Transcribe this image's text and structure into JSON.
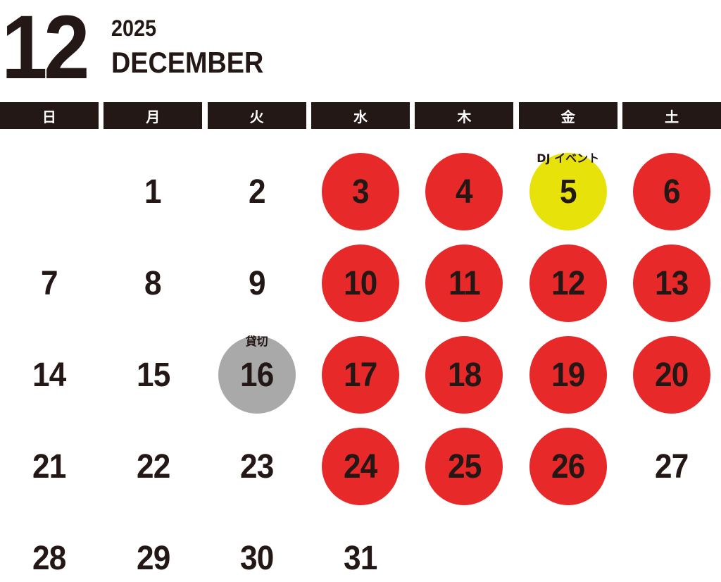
{
  "header": {
    "month_number": "12",
    "year": "2025",
    "month_name": "DECEMBER"
  },
  "weekdays": [
    "日",
    "月",
    "火",
    "水",
    "木",
    "金",
    "土"
  ],
  "colors": {
    "closed": "#e8292a",
    "event": "#e6e20a",
    "reserved": "#a9a9a9",
    "text": "#231815"
  },
  "first_weekday_index": 1,
  "days": [
    {
      "day": "1",
      "status": "open"
    },
    {
      "day": "2",
      "status": "open"
    },
    {
      "day": "3",
      "status": "closed"
    },
    {
      "day": "4",
      "status": "closed"
    },
    {
      "day": "5",
      "status": "event",
      "note": "DJ イベント"
    },
    {
      "day": "6",
      "status": "closed"
    },
    {
      "day": "7",
      "status": "open"
    },
    {
      "day": "8",
      "status": "open"
    },
    {
      "day": "9",
      "status": "open"
    },
    {
      "day": "10",
      "status": "closed"
    },
    {
      "day": "11",
      "status": "closed"
    },
    {
      "day": "12",
      "status": "closed"
    },
    {
      "day": "13",
      "status": "closed"
    },
    {
      "day": "14",
      "status": "open"
    },
    {
      "day": "15",
      "status": "open"
    },
    {
      "day": "16",
      "status": "reserved",
      "note": "貸切"
    },
    {
      "day": "17",
      "status": "closed"
    },
    {
      "day": "18",
      "status": "closed"
    },
    {
      "day": "19",
      "status": "closed"
    },
    {
      "day": "20",
      "status": "closed"
    },
    {
      "day": "21",
      "status": "open"
    },
    {
      "day": "22",
      "status": "open"
    },
    {
      "day": "23",
      "status": "open"
    },
    {
      "day": "24",
      "status": "closed"
    },
    {
      "day": "25",
      "status": "closed"
    },
    {
      "day": "26",
      "status": "closed"
    },
    {
      "day": "27",
      "status": "open"
    },
    {
      "day": "28",
      "status": "open"
    },
    {
      "day": "29",
      "status": "open"
    },
    {
      "day": "30",
      "status": "open"
    },
    {
      "day": "31",
      "status": "open"
    }
  ]
}
